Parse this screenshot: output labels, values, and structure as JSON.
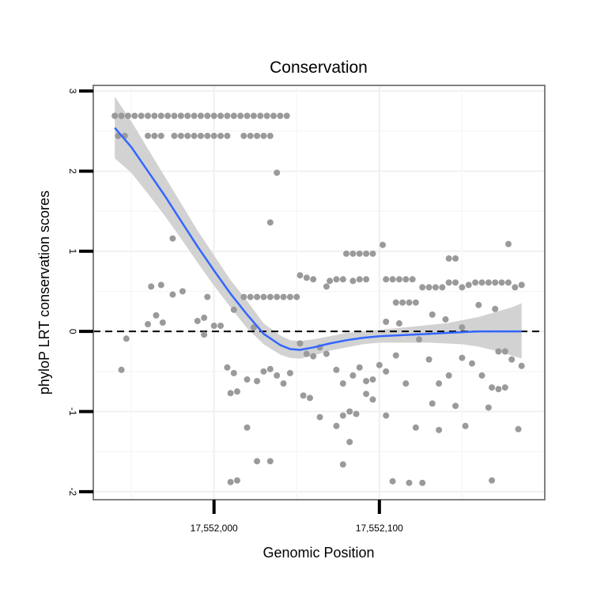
{
  "chart_data": {
    "type": "scatter",
    "title": "Conservation",
    "xlabel": "Genomic Position",
    "ylabel": "phyloP LRT conservation scores",
    "xlim": [
      17551927,
      17552200
    ],
    "ylim": [
      -2.1,
      3.07
    ],
    "x_ticks": [
      17552000,
      17552100
    ],
    "x_tick_labels": [
      "17,552,000",
      "17,552,100"
    ],
    "y_ticks": [
      -2,
      -1,
      0,
      1,
      2,
      3
    ],
    "y_tick_labels": [
      "-2",
      "-1",
      "0",
      "1",
      "2",
      "3"
    ],
    "reference_line": {
      "y": 0,
      "style": "dashed"
    },
    "point_color": "#9a9a9a",
    "smooth_color": "#3366ff",
    "band_color": "#d2d2d2",
    "points": [
      [
        17551940,
        2.69
      ],
      [
        17551944,
        2.69
      ],
      [
        17551948,
        2.69
      ],
      [
        17551952,
        2.69
      ],
      [
        17551956,
        2.69
      ],
      [
        17551960,
        2.69
      ],
      [
        17551964,
        2.69
      ],
      [
        17551968,
        2.69
      ],
      [
        17551972,
        2.69
      ],
      [
        17551976,
        2.69
      ],
      [
        17551980,
        2.69
      ],
      [
        17551984,
        2.69
      ],
      [
        17551988,
        2.69
      ],
      [
        17551992,
        2.69
      ],
      [
        17551996,
        2.69
      ],
      [
        17552000,
        2.69
      ],
      [
        17552004,
        2.69
      ],
      [
        17552008,
        2.69
      ],
      [
        17552012,
        2.69
      ],
      [
        17552016,
        2.69
      ],
      [
        17552020,
        2.69
      ],
      [
        17552024,
        2.69
      ],
      [
        17552028,
        2.69
      ],
      [
        17552032,
        2.69
      ],
      [
        17552036,
        2.69
      ],
      [
        17552040,
        2.69
      ],
      [
        17552044,
        2.69
      ],
      [
        17551942,
        2.44
      ],
      [
        17551946,
        2.44
      ],
      [
        17551960,
        2.44
      ],
      [
        17551964,
        2.44
      ],
      [
        17551968,
        2.44
      ],
      [
        17551976,
        2.44
      ],
      [
        17551980,
        2.44
      ],
      [
        17551984,
        2.44
      ],
      [
        17551988,
        2.44
      ],
      [
        17551992,
        2.44
      ],
      [
        17551996,
        2.44
      ],
      [
        17552000,
        2.44
      ],
      [
        17552004,
        2.44
      ],
      [
        17552008,
        2.44
      ],
      [
        17552018,
        2.44
      ],
      [
        17552022,
        2.44
      ],
      [
        17552026,
        2.44
      ],
      [
        17552030,
        2.44
      ],
      [
        17552034,
        2.44
      ],
      [
        17552038,
        1.98
      ],
      [
        17552034,
        1.36
      ],
      [
        17551975,
        1.16
      ],
      [
        17552080,
        0.97
      ],
      [
        17552084,
        0.97
      ],
      [
        17552088,
        0.97
      ],
      [
        17552092,
        0.97
      ],
      [
        17552096,
        0.97
      ],
      [
        17552102,
        1.08
      ],
      [
        17552142,
        0.91
      ],
      [
        17552146,
        0.91
      ],
      [
        17552178,
        1.09
      ],
      [
        17551962,
        0.56
      ],
      [
        17551968,
        0.58
      ],
      [
        17551981,
        0.5
      ],
      [
        17551975,
        0.46
      ],
      [
        17552018,
        0.43
      ],
      [
        17552022,
        0.43
      ],
      [
        17552026,
        0.43
      ],
      [
        17552030,
        0.43
      ],
      [
        17552034,
        0.43
      ],
      [
        17552038,
        0.43
      ],
      [
        17552042,
        0.43
      ],
      [
        17552046,
        0.43
      ],
      [
        17552050,
        0.43
      ],
      [
        17552052,
        0.7
      ],
      [
        17552056,
        0.67
      ],
      [
        17552060,
        0.65
      ],
      [
        17552068,
        0.56
      ],
      [
        17552070,
        0.63
      ],
      [
        17552074,
        0.65
      ],
      [
        17552078,
        0.65
      ],
      [
        17552084,
        0.63
      ],
      [
        17552088,
        0.65
      ],
      [
        17552092,
        0.65
      ],
      [
        17552104,
        0.65
      ],
      [
        17552108,
        0.65
      ],
      [
        17552112,
        0.65
      ],
      [
        17552116,
        0.65
      ],
      [
        17552120,
        0.65
      ],
      [
        17552110,
        0.36
      ],
      [
        17552114,
        0.36
      ],
      [
        17552118,
        0.36
      ],
      [
        17552122,
        0.36
      ],
      [
        17552126,
        0.55
      ],
      [
        17552130,
        0.55
      ],
      [
        17552134,
        0.55
      ],
      [
        17552138,
        0.55
      ],
      [
        17552142,
        0.61
      ],
      [
        17552146,
        0.61
      ],
      [
        17552150,
        0.55
      ],
      [
        17552154,
        0.58
      ],
      [
        17552158,
        0.61
      ],
      [
        17552162,
        0.61
      ],
      [
        17552166,
        0.61
      ],
      [
        17552170,
        0.61
      ],
      [
        17552174,
        0.61
      ],
      [
        17552178,
        0.61
      ],
      [
        17552182,
        0.55
      ],
      [
        17552186,
        0.58
      ],
      [
        17551994,
        0.17
      ],
      [
        17551990,
        0.13
      ],
      [
        17551994,
        -0.04
      ],
      [
        17552000,
        0.07
      ],
      [
        17552004,
        0.07
      ],
      [
        17551960,
        0.09
      ],
      [
        17551965,
        0.2
      ],
      [
        17551969,
        0.11
      ],
      [
        17551947,
        -0.09
      ],
      [
        17551996,
        0.43
      ],
      [
        17552012,
        0.27
      ],
      [
        17552024,
        0.05
      ],
      [
        17552104,
        0.12
      ],
      [
        17552112,
        0.1
      ],
      [
        17552132,
        0.21
      ],
      [
        17552140,
        0.15
      ],
      [
        17552150,
        0.05
      ],
      [
        17552160,
        0.33
      ],
      [
        17552170,
        0.28
      ],
      [
        17551944,
        -0.48
      ],
      [
        17552008,
        -0.45
      ],
      [
        17552012,
        -0.52
      ],
      [
        17552020,
        -0.6
      ],
      [
        17552026,
        -0.62
      ],
      [
        17552030,
        -0.5
      ],
      [
        17552034,
        -0.47
      ],
      [
        17552038,
        -0.55
      ],
      [
        17552042,
        -0.65
      ],
      [
        17552046,
        -0.52
      ],
      [
        17552052,
        -0.15
      ],
      [
        17552056,
        -0.28
      ],
      [
        17552060,
        -0.31
      ],
      [
        17552064,
        -0.2
      ],
      [
        17552068,
        -0.28
      ],
      [
        17552074,
        -0.48
      ],
      [
        17552078,
        -0.65
      ],
      [
        17552084,
        -0.55
      ],
      [
        17552088,
        -0.45
      ],
      [
        17552092,
        -0.62
      ],
      [
        17552096,
        -0.6
      ],
      [
        17552100,
        -0.42
      ],
      [
        17552104,
        -0.5
      ],
      [
        17552110,
        -0.3
      ],
      [
        17552116,
        -0.65
      ],
      [
        17552124,
        -0.1
      ],
      [
        17552130,
        -0.35
      ],
      [
        17552136,
        -0.65
      ],
      [
        17552142,
        -0.55
      ],
      [
        17552150,
        -0.33
      ],
      [
        17552156,
        -0.4
      ],
      [
        17552162,
        -0.55
      ],
      [
        17552168,
        -0.7
      ],
      [
        17552172,
        -0.25
      ],
      [
        17552176,
        -0.25
      ],
      [
        17552180,
        -0.35
      ],
      [
        17552186,
        -0.43
      ],
      [
        17552010,
        -0.77
      ],
      [
        17552014,
        -0.75
      ],
      [
        17552020,
        -1.2
      ],
      [
        17552054,
        -0.8
      ],
      [
        17552058,
        -0.83
      ],
      [
        17552064,
        -1.07
      ],
      [
        17552074,
        -1.18
      ],
      [
        17552078,
        -1.05
      ],
      [
        17552082,
        -1.0
      ],
      [
        17552086,
        -1.03
      ],
      [
        17552092,
        -0.78
      ],
      [
        17552096,
        -0.85
      ],
      [
        17552104,
        -1.05
      ],
      [
        17552122,
        -1.2
      ],
      [
        17552132,
        -0.9
      ],
      [
        17552136,
        -1.23
      ],
      [
        17552146,
        -0.93
      ],
      [
        17552152,
        -1.18
      ],
      [
        17552166,
        -0.95
      ],
      [
        17552172,
        -0.72
      ],
      [
        17552176,
        -0.7
      ],
      [
        17552184,
        -1.22
      ],
      [
        17552026,
        -1.62
      ],
      [
        17552034,
        -1.62
      ],
      [
        17552082,
        -1.38
      ],
      [
        17552078,
        -1.66
      ],
      [
        17552010,
        -1.88
      ],
      [
        17552014,
        -1.86
      ],
      [
        17552108,
        -1.87
      ],
      [
        17552118,
        -1.89
      ],
      [
        17552126,
        -1.89
      ],
      [
        17552168,
        -1.86
      ]
    ],
    "smooth": [
      [
        17551940,
        2.54
      ],
      [
        17551950,
        2.3
      ],
      [
        17551960,
        2.0
      ],
      [
        17551970,
        1.7
      ],
      [
        17551980,
        1.38
      ],
      [
        17551990,
        1.06
      ],
      [
        17552000,
        0.76
      ],
      [
        17552010,
        0.47
      ],
      [
        17552020,
        0.21
      ],
      [
        17552030,
        -0.03
      ],
      [
        17552040,
        -0.17
      ],
      [
        17552046,
        -0.22
      ],
      [
        17552052,
        -0.23
      ],
      [
        17552060,
        -0.2
      ],
      [
        17552070,
        -0.15
      ],
      [
        17552080,
        -0.11
      ],
      [
        17552090,
        -0.08
      ],
      [
        17552100,
        -0.06
      ],
      [
        17552110,
        -0.05
      ],
      [
        17552120,
        -0.04
      ],
      [
        17552130,
        -0.03
      ],
      [
        17552140,
        -0.02
      ],
      [
        17552150,
        -0.01
      ],
      [
        17552160,
        0.0
      ],
      [
        17552170,
        0.0
      ],
      [
        17552180,
        0.0
      ],
      [
        17552186,
        0.0
      ]
    ],
    "band_upper": [
      [
        17551940,
        2.93
      ],
      [
        17551950,
        2.62
      ],
      [
        17551960,
        2.28
      ],
      [
        17551970,
        1.94
      ],
      [
        17551980,
        1.6
      ],
      [
        17551990,
        1.26
      ],
      [
        17552000,
        0.95
      ],
      [
        17552010,
        0.64
      ],
      [
        17552020,
        0.38
      ],
      [
        17552030,
        0.1
      ],
      [
        17552040,
        -0.05
      ],
      [
        17552046,
        -0.11
      ],
      [
        17552052,
        -0.12
      ],
      [
        17552060,
        -0.1
      ],
      [
        17552070,
        -0.06
      ],
      [
        17552080,
        -0.02
      ],
      [
        17552090,
        0.0
      ],
      [
        17552100,
        0.02
      ],
      [
        17552110,
        0.04
      ],
      [
        17552120,
        0.06
      ],
      [
        17552130,
        0.08
      ],
      [
        17552140,
        0.1
      ],
      [
        17552150,
        0.14
      ],
      [
        17552160,
        0.18
      ],
      [
        17552170,
        0.24
      ],
      [
        17552180,
        0.3
      ],
      [
        17552186,
        0.35
      ]
    ],
    "band_lower": [
      [
        17551940,
        2.16
      ],
      [
        17551950,
        1.98
      ],
      [
        17551960,
        1.72
      ],
      [
        17551970,
        1.45
      ],
      [
        17551980,
        1.16
      ],
      [
        17551990,
        0.86
      ],
      [
        17552000,
        0.57
      ],
      [
        17552010,
        0.3
      ],
      [
        17552020,
        0.04
      ],
      [
        17552030,
        -0.16
      ],
      [
        17552040,
        -0.29
      ],
      [
        17552046,
        -0.33
      ],
      [
        17552052,
        -0.34
      ],
      [
        17552060,
        -0.3
      ],
      [
        17552070,
        -0.24
      ],
      [
        17552080,
        -0.2
      ],
      [
        17552090,
        -0.16
      ],
      [
        17552100,
        -0.14
      ],
      [
        17552110,
        -0.14
      ],
      [
        17552120,
        -0.14
      ],
      [
        17552130,
        -0.14
      ],
      [
        17552140,
        -0.15
      ],
      [
        17552150,
        -0.16
      ],
      [
        17552160,
        -0.19
      ],
      [
        17552170,
        -0.24
      ],
      [
        17552180,
        -0.3
      ],
      [
        17552186,
        -0.34
      ]
    ]
  }
}
